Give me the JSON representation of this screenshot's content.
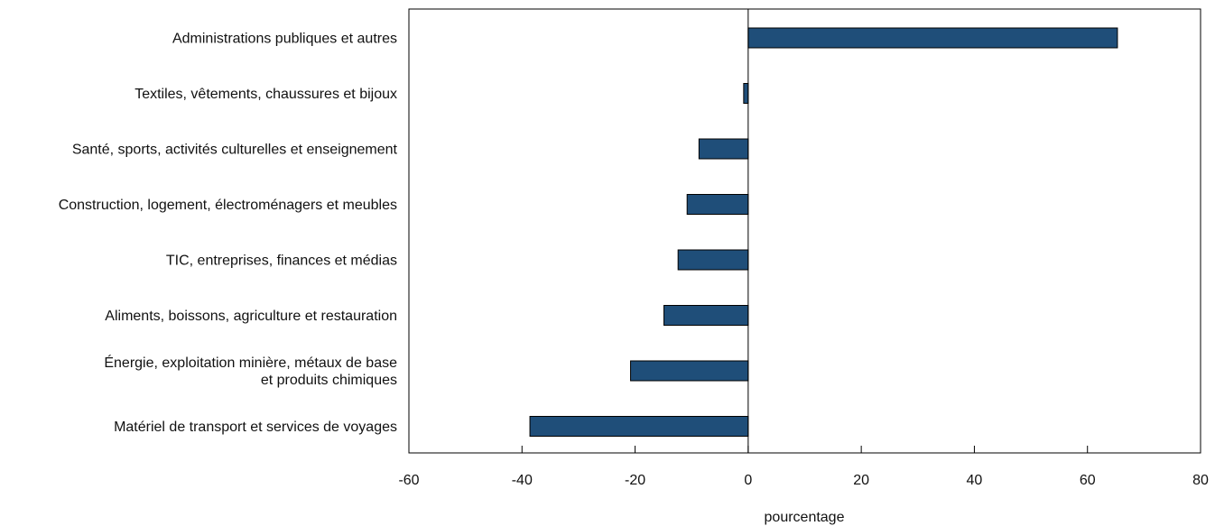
{
  "chart_data": {
    "type": "bar",
    "orientation": "horizontal",
    "categories": [
      "Administrations publiques et autres",
      "Textiles, vêtements, chaussures et bijoux",
      "Santé, sports, activités culturelles et enseignement",
      "Construction, logement, électroménagers et meubles",
      "TIC, entreprises, finances et médias",
      "Aliments, boissons, agriculture et restauration",
      "Énergie, exploitation minière, métaux de base\net produits chimiques",
      "Matériel de transport et services de voyages"
    ],
    "values": [
      65.3,
      -0.8,
      -8.7,
      -10.8,
      -12.4,
      -14.9,
      -20.8,
      -38.6
    ],
    "xlabel": "pourcentage",
    "xlim": [
      -60,
      80
    ],
    "xticks": [
      -60,
      -40,
      -20,
      0,
      20,
      40,
      60,
      80
    ],
    "tick_labels": [
      "-60",
      "-40",
      "-20",
      "0",
      "20",
      "40",
      "60",
      "80"
    ],
    "bar_color": "#1f4e79",
    "grid": false
  }
}
